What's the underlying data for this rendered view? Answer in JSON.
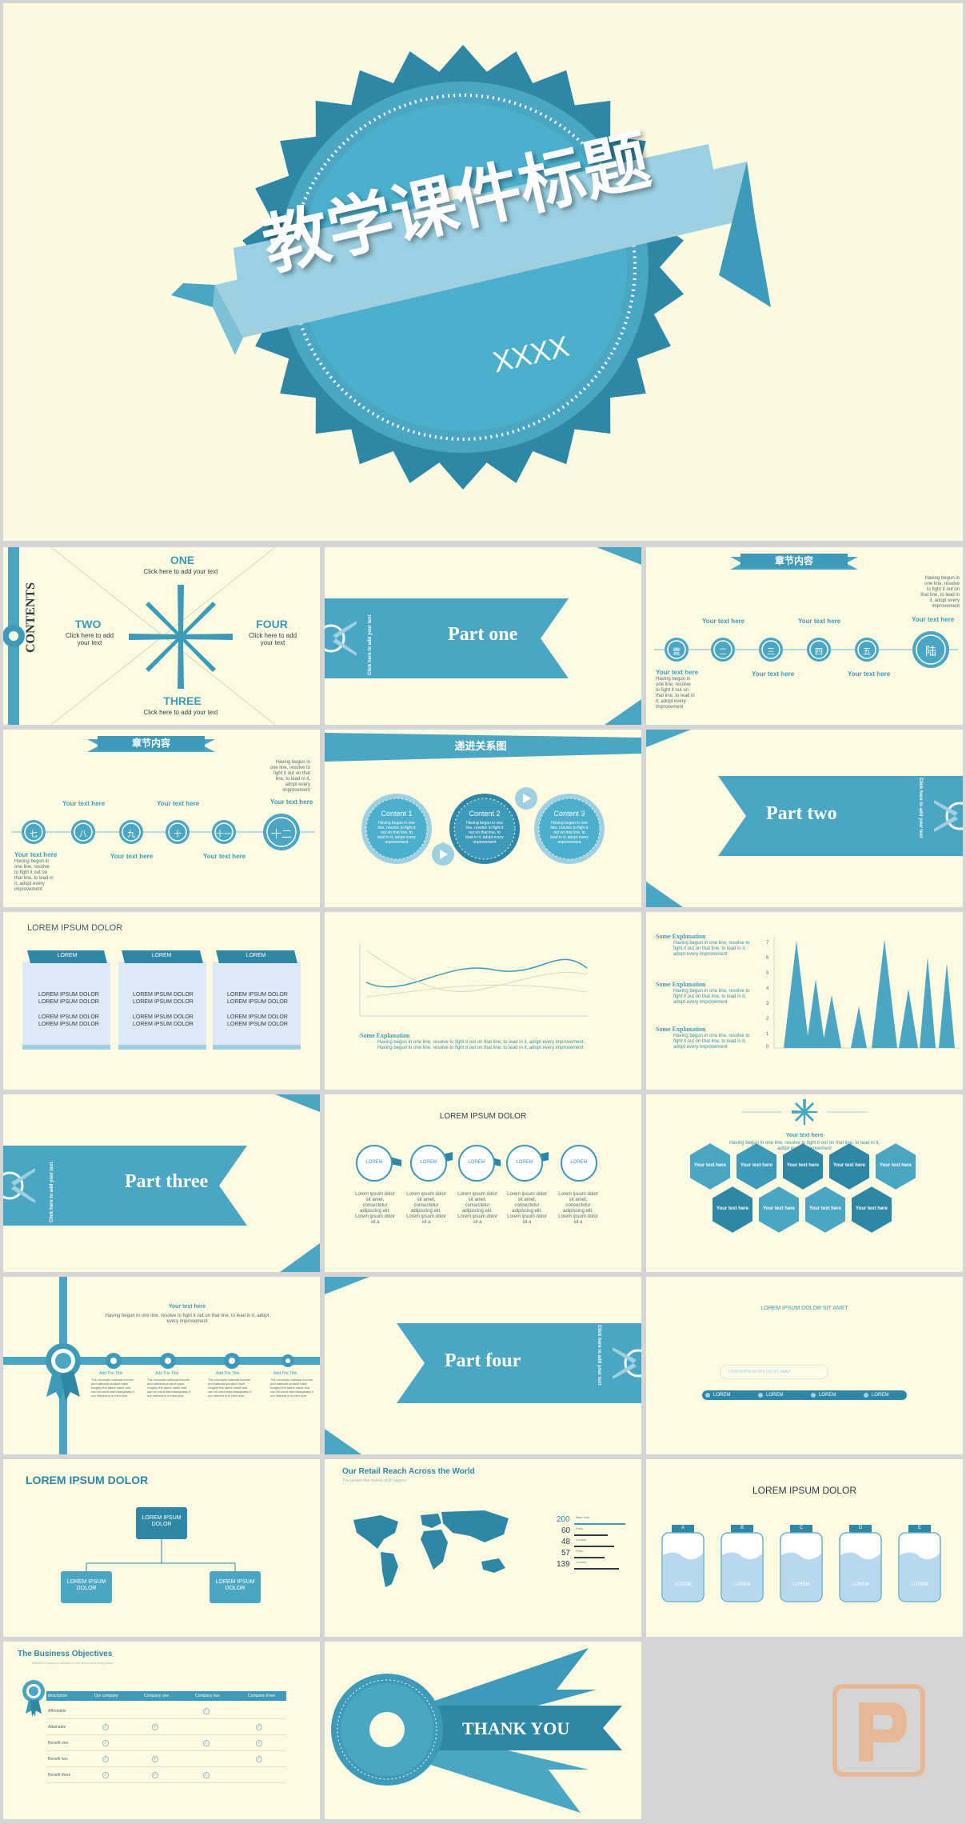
{
  "colors": {
    "primary": "#3d9ab9",
    "dark": "#2a7a96",
    "light": "#9fd0e1",
    "bg": "#fcfbe2"
  },
  "s1": {
    "title": "教学课件标题",
    "subtitle": "XXXX"
  },
  "s2": {
    "contents": "CONTENTS",
    "one": "ONE",
    "two": "TWO",
    "three": "THREE",
    "four": "FOUR",
    "sub": "Click here to add your text",
    "sub_two": "Click here to add your text"
  },
  "s3": {
    "part": "Part one",
    "vertical": "Click here to add your text"
  },
  "s4": {
    "banner": "章节内容",
    "your_text": "Your text here",
    "nodes": [
      "壹",
      "二",
      "三",
      "四",
      "五",
      "陆"
    ],
    "desc": "Having begun in one line, resolve to fight it out on that line, to lead in it, adopt every improvement"
  },
  "s5": {
    "banner": "章节内容",
    "your_text": "Your text here",
    "nodes": [
      "七",
      "八",
      "九",
      "十",
      "十一",
      "十二"
    ],
    "desc": "Having begun in one line, resolve to fight it out on that line, to lead in it, adopt every improvement"
  },
  "s6": {
    "title": "递进关系图",
    "c1": "Content 1",
    "c2": "Content 2",
    "c3": "Content 3",
    "desc": "Having begun in one line, resolve to fight it out on that line, to lead in it, adopt every improvement"
  },
  "s7": {
    "part": "Part two",
    "vertical": "Click here to add your text"
  },
  "s8": {
    "title": "LOREM IPSUM DOLOR",
    "tab": "LOREM",
    "line": "LOREM IPSUM DOLOR"
  },
  "s9": {
    "label": "Some Explanation",
    "desc": "Having begun in one line, resolve to fight it out on that line, to lead in it, adopt every improvement , Having begun in one line, resolve to fight it out on that line, to lead in it, adopt every improvement"
  },
  "s10": {
    "label": "Some Explanation",
    "desc": "Having begun in one line, resolve to fight it out on that line, to lead in it, adopt every improvement",
    "ticks": [
      "7",
      "6",
      "5",
      "4",
      "3",
      "2",
      "1",
      "0"
    ]
  },
  "s11": {
    "part": "Part three",
    "vertical": "Click here to add your text"
  },
  "s12": {
    "title": "LOREM IPSUM DOLOR",
    "item": "LOREM",
    "desc": "Lorem ipsum dolor sit amet, consectetur adipiscing elit. Lorem ipsum dolor sit a"
  },
  "s13": {
    "title": "Your text here",
    "desc": "Having begun in one line, resolve to fight it out on that line, to lead in it, adopt every improvement",
    "hex": "Your text here"
  },
  "s14": {
    "title": "Your text here",
    "desc": "Having begun in one line, resolve to fight it out on that line, to lead in it, adopt every improvement",
    "add": "Add The Title",
    "adddesc": "The concepts national income and national product have roughly the same value and can be used interchangeably if our interest is in their size"
  },
  "s15": {
    "part": "Part four",
    "vertical": "Click here to add your text"
  },
  "s16": {
    "title": "LOREM IPSUM DOLOR SIT AMET",
    "input": "LOREM IPSUM DOLOR SIT AMET",
    "item": "LOREM"
  },
  "s17": {
    "title": "LOREM IPSUM DOLOR",
    "top": "LOREM IPSUM DOLOR",
    "left": "LOREM IPSUM DOLOR",
    "right": "LOREM IPSUM DOLOR"
  },
  "s18": {
    "title": "Our Retail Reach Across the World",
    "subtitle": "The people that makes stuff happen",
    "stats": [
      "200",
      "60",
      "48",
      "57",
      "139"
    ],
    "statlabels": [
      "New York",
      "Paris",
      "London",
      "Paris",
      "London"
    ]
  },
  "s19": {
    "title": "LOREM IPSUM DOLOR",
    "letters": [
      "A",
      "B",
      "C",
      "D",
      "E"
    ],
    "item": "LOREM"
  },
  "s20": {
    "title": "The Business Objectives",
    "subtitle": "Whatever happens ambition in the future and designation",
    "headers": [
      "description",
      "Our company",
      "Company one",
      "Company two",
      "Company three"
    ],
    "rows": [
      "Affordable",
      "Attainable",
      "Benefit one",
      "Benefit two",
      "Benefit three"
    ]
  },
  "s21": {
    "thanks": "THANK YOU"
  }
}
